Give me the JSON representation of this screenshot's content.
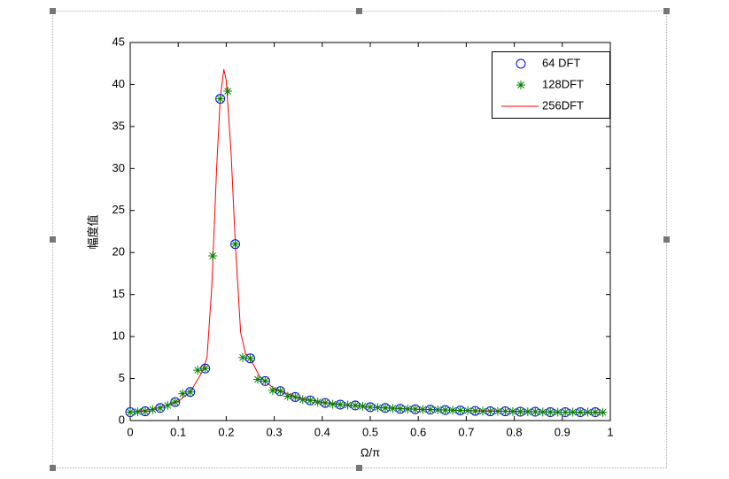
{
  "chart_data": {
    "type": "line",
    "xlabel": "Ω/π",
    "ylabel": "幅度值",
    "xlim": [
      0,
      1
    ],
    "xticks": [
      0,
      0.1,
      0.2,
      0.3,
      0.4,
      0.5,
      0.6,
      0.7,
      0.8,
      0.9,
      1
    ],
    "ylim": [
      0,
      45
    ],
    "yticks": [
      0,
      5,
      10,
      15,
      20,
      25,
      30,
      35,
      40,
      45
    ],
    "grid": false,
    "legend": "upper right",
    "series": [
      {
        "name": "64 DFT",
        "color": "#0000ff",
        "marker": "circle",
        "x": [
          0,
          0.03125,
          0.0625,
          0.09375,
          0.125,
          0.15625,
          0.1875,
          0.21875,
          0.25,
          0.28125,
          0.3125,
          0.34375,
          0.375,
          0.40625,
          0.4375,
          0.46875,
          0.5,
          0.53125,
          0.5625,
          0.59375,
          0.625,
          0.65625,
          0.6875,
          0.71875,
          0.75,
          0.78125,
          0.8125,
          0.84375,
          0.875,
          0.90625,
          0.9375,
          0.96875
        ],
        "values": [
          1.0,
          1.1,
          1.5,
          2.2,
          3.4,
          6.2,
          38.3,
          21,
          7.4,
          4.7,
          3.5,
          2.8,
          2.4,
          2.1,
          1.9,
          1.8,
          1.6,
          1.5,
          1.4,
          1.35,
          1.3,
          1.25,
          1.2,
          1.15,
          1.1,
          1.1,
          1.05,
          1.05,
          1.0,
          1.0,
          1.0,
          1.0
        ]
      },
      {
        "name": "128DFT",
        "color": "#008000",
        "marker": "star",
        "x": [
          0,
          0.015625,
          0.03125,
          0.046875,
          0.0625,
          0.078125,
          0.09375,
          0.109375,
          0.125,
          0.140625,
          0.15625,
          0.171875,
          0.1875,
          0.203125,
          0.21875,
          0.234375,
          0.25,
          0.265625,
          0.28125,
          0.296875,
          0.3125,
          0.328125,
          0.34375,
          0.359375,
          0.375,
          0.390625,
          0.40625,
          0.421875,
          0.4375,
          0.453125,
          0.46875,
          0.484375,
          0.5,
          0.515625,
          0.53125,
          0.546875,
          0.5625,
          0.578125,
          0.59375,
          0.609375,
          0.625,
          0.640625,
          0.65625,
          0.671875,
          0.6875,
          0.703125,
          0.71875,
          0.734375,
          0.75,
          0.765625,
          0.78125,
          0.796875,
          0.8125,
          0.828125,
          0.84375,
          0.859375,
          0.875,
          0.890625,
          0.90625,
          0.921875,
          0.9375,
          0.953125,
          0.96875,
          0.984375
        ],
        "values": [
          1.0,
          1.05,
          1.1,
          1.3,
          1.5,
          1.8,
          2.2,
          3.2,
          3.4,
          6.0,
          6.2,
          19.6,
          38.3,
          39.2,
          21,
          7.5,
          7.4,
          4.9,
          4.7,
          3.6,
          3.5,
          2.9,
          2.8,
          2.5,
          2.4,
          2.2,
          2.1,
          1.95,
          1.9,
          1.85,
          1.8,
          1.7,
          1.6,
          1.55,
          1.5,
          1.45,
          1.4,
          1.38,
          1.35,
          1.32,
          1.3,
          1.28,
          1.25,
          1.22,
          1.2,
          1.18,
          1.15,
          1.12,
          1.1,
          1.1,
          1.1,
          1.08,
          1.05,
          1.05,
          1.05,
          1.02,
          1.0,
          1.0,
          1.0,
          1.0,
          1.0,
          1.0,
          1.0,
          0.98
        ]
      },
      {
        "name": "256DFT",
        "color": "#ff0000",
        "marker": "none",
        "x": [
          0,
          0.05,
          0.1,
          0.125,
          0.15,
          0.16,
          0.17,
          0.18,
          0.1875,
          0.195,
          0.2,
          0.21,
          0.219,
          0.23,
          0.24,
          0.25,
          0.27,
          0.3,
          0.35,
          0.4,
          0.45,
          0.5,
          0.6,
          0.7,
          0.8,
          0.9,
          0.99
        ],
        "values": [
          1.0,
          1.35,
          2.3,
          3.4,
          5.8,
          7.5,
          16,
          30,
          38.3,
          41.8,
          40.5,
          32,
          21,
          10.5,
          8.0,
          7.4,
          5.2,
          3.8,
          2.7,
          2.2,
          1.85,
          1.6,
          1.35,
          1.2,
          1.1,
          1.0,
          0.95
        ]
      }
    ]
  }
}
